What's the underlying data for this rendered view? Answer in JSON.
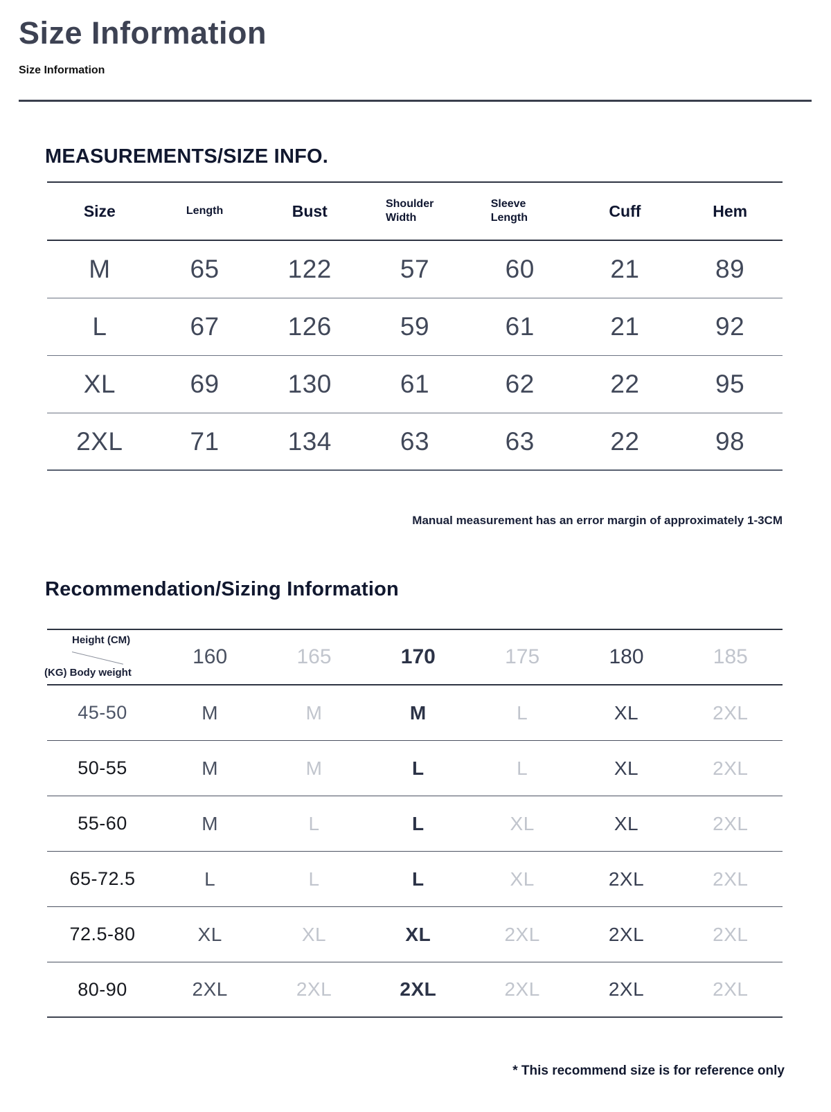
{
  "page": {
    "title": "Size Information",
    "subtitle": "Size Information"
  },
  "colors": {
    "title_slate": "#3d4253",
    "heading_navy": "#11182f",
    "data_slate": "#414859",
    "muted_gray": "#c1c5cd",
    "emphasis_dark": "#2c3347",
    "rule_dark": "#2e3442"
  },
  "measurements": {
    "heading": "MEASUREMENTS/SIZE INFO.",
    "note": "Manual measurement has an error margin of approximately 1-3CM",
    "columns": [
      "Size",
      "Length",
      "Bust",
      "Shoulder Width",
      "Sleeve Length",
      "Cuff",
      "Hem"
    ],
    "rows": [
      {
        "size": "M",
        "length": "65",
        "bust": "122",
        "shoulder_width": "57",
        "sleeve_length": "60",
        "cuff": "21",
        "hem": "89"
      },
      {
        "size": "L",
        "length": "67",
        "bust": "126",
        "shoulder_width": "59",
        "sleeve_length": "61",
        "cuff": "21",
        "hem": "92"
      },
      {
        "size": "XL",
        "length": "69",
        "bust": "130",
        "shoulder_width": "61",
        "sleeve_length": "62",
        "cuff": "22",
        "hem": "95"
      },
      {
        "size": "2XL",
        "length": "71",
        "bust": "134",
        "shoulder_width": "63",
        "sleeve_length": "63",
        "cuff": "22",
        "hem": "98"
      }
    ]
  },
  "recommendation": {
    "heading": "Recommendation/Sizing Information",
    "note": "* This recommend size is for reference only",
    "axis": {
      "height_label": "Height (CM)",
      "weight_label": "(KG) Body weight"
    },
    "heights": [
      "160",
      "165",
      "170",
      "175",
      "180",
      "185"
    ],
    "rows": [
      {
        "weight": "45-50",
        "sizes": [
          "M",
          "M",
          "M",
          "L",
          "XL",
          "2XL"
        ]
      },
      {
        "weight": "50-55",
        "sizes": [
          "M",
          "M",
          "L",
          "L",
          "XL",
          "2XL"
        ]
      },
      {
        "weight": "55-60",
        "sizes": [
          "M",
          "L",
          "L",
          "XL",
          "XL",
          "2XL"
        ]
      },
      {
        "weight": "65-72.5",
        "sizes": [
          "L",
          "L",
          "L",
          "XL",
          "2XL",
          "2XL"
        ]
      },
      {
        "weight": "72.5-80",
        "sizes": [
          "XL",
          "XL",
          "XL",
          "2XL",
          "2XL",
          "2XL"
        ]
      },
      {
        "weight": "80-90",
        "sizes": [
          "2XL",
          "2XL",
          "2XL",
          "2XL",
          "2XL",
          "2XL"
        ]
      }
    ]
  }
}
